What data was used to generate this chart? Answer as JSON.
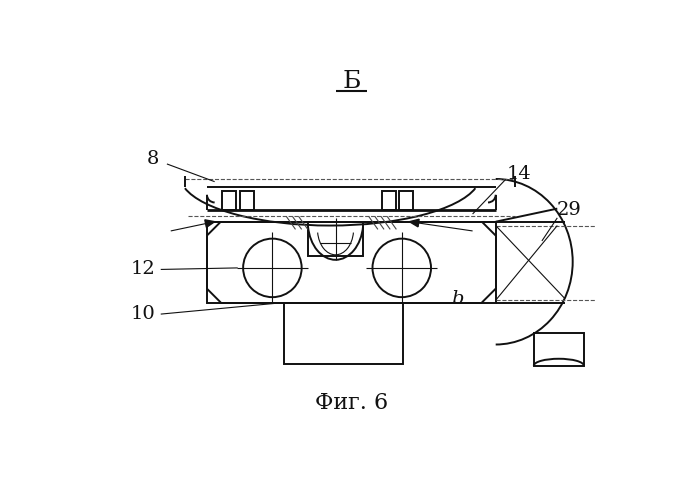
{
  "bg_color": "#ffffff",
  "line_color": "#111111",
  "title": "Б",
  "caption": "Фиг. 6",
  "lw_thin": 0.8,
  "lw_med": 1.4,
  "lw_thick": 2.0
}
